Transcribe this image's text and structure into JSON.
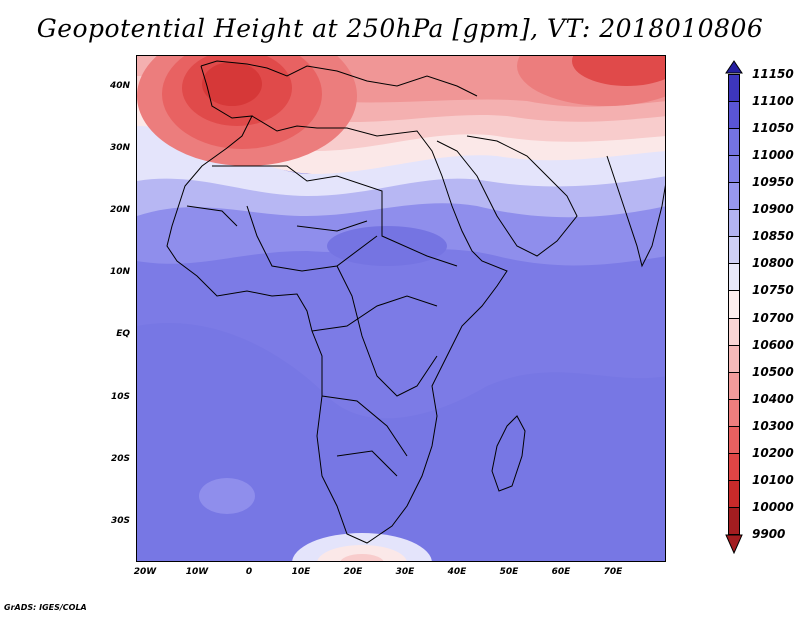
{
  "title": "Geopotential Height at 250hPa [gpm], VT: 2018010806",
  "credit": "GrADS: IGES/COLA",
  "map": {
    "lon_labels": [
      "20W",
      "10W",
      "0",
      "10E",
      "20E",
      "30E",
      "40E",
      "50E",
      "60E",
      "70E"
    ],
    "lat_labels": [
      "40N",
      "30N",
      "20N",
      "10N",
      "EQ",
      "10S",
      "20S",
      "30S"
    ]
  },
  "colorbar": {
    "labels": [
      "9900",
      "10000",
      "10100",
      "10200",
      "10300",
      "10400",
      "10500",
      "10600",
      "10700",
      "10750",
      "10800",
      "10850",
      "10900",
      "10950",
      "11000",
      "11050",
      "11100",
      "11150"
    ],
    "colors": [
      "#a31d20",
      "#c92a2a",
      "#e04545",
      "#e86060",
      "#ee7e7e",
      "#f29b9b",
      "#f6b9b9",
      "#fad5d5",
      "#fdeeee",
      "#e8e8fa",
      "#cfd0f6",
      "#b2b3f1",
      "#9898ee",
      "#8382e9",
      "#7473e3",
      "#5a55d6",
      "#3d36bd",
      "#241ea0"
    ]
  }
}
